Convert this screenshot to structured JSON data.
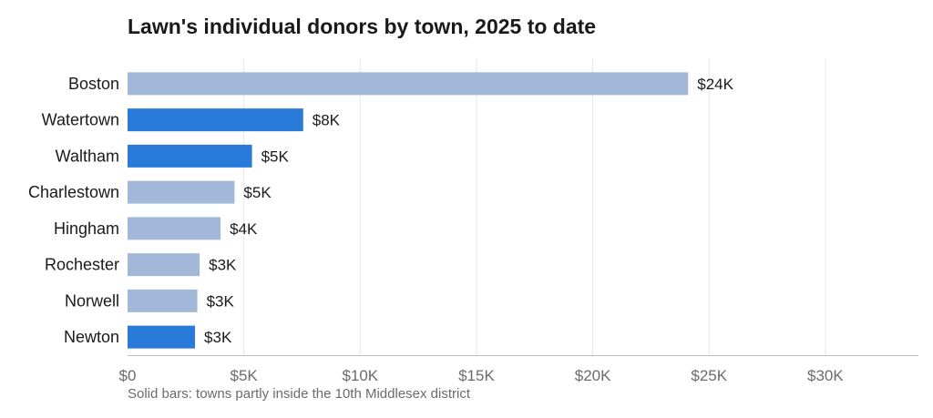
{
  "chart_data": {
    "type": "bar",
    "orientation": "horizontal",
    "title": "Lawn's individual donors by town, 2025 to date",
    "xlabel": "",
    "ylabel": "",
    "xlim": [
      0,
      34000
    ],
    "xticks": [
      0,
      5000,
      10000,
      15000,
      20000,
      25000,
      30000
    ],
    "xtick_labels": [
      "$0",
      "$5K",
      "$10K",
      "$15K",
      "$20K",
      "$25K",
      "$30K"
    ],
    "grid": true,
    "categories": [
      "Boston",
      "Watertown",
      "Waltham",
      "Charlestown",
      "Hingham",
      "Rochester",
      "Norwell",
      "Newton"
    ],
    "values": [
      24100,
      7550,
      5350,
      4600,
      4000,
      3100,
      3000,
      2900
    ],
    "value_labels": [
      "$24K",
      "$8K",
      "$5K",
      "$5K",
      "$4K",
      "$3K",
      "$3K",
      "$3K"
    ],
    "in_district": [
      false,
      true,
      true,
      false,
      false,
      false,
      false,
      true
    ],
    "colors": {
      "in_district": "#2a7ad9",
      "other": "#a3b8d8",
      "grid": "#e6e6e6",
      "axis": "#bfbfbf"
    },
    "note": "Solid bars: towns partly inside the 10th Middlesex district"
  }
}
